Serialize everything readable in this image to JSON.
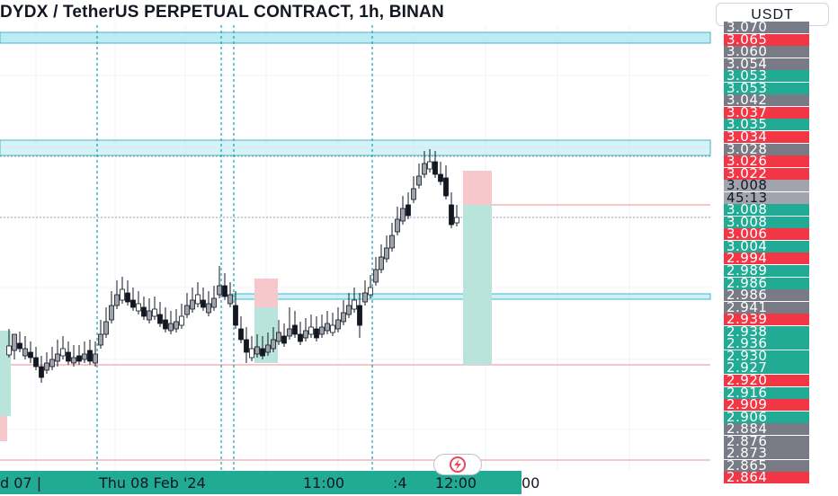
{
  "header": {
    "title": "DYDX / TetherUS PERPETUAL CONTRACT, 1h, BINAN",
    "currency_button": "USDT"
  },
  "colors": {
    "up": "#22ab94",
    "down": "#f23645",
    "neutral": "#787b86",
    "wick": "#131722",
    "zone": "#aee6f0",
    "zone_border": "#41b6c9",
    "stop_zone": "#f7c8cb",
    "target_zone": "#b9e4dc"
  },
  "price_axis": [
    {
      "text": "3.070",
      "color": "#787b86"
    },
    {
      "text": "3.065",
      "color": "#f23645"
    },
    {
      "text": "3.060",
      "color": "#787b86"
    },
    {
      "text": "3.054",
      "color": "#787b86"
    },
    {
      "text": "3.053",
      "color": "#22ab94"
    },
    {
      "text": "3.053",
      "color": "#22ab94"
    },
    {
      "text": "3.042",
      "color": "#787b86"
    },
    {
      "text": "3.037",
      "color": "#f23645"
    },
    {
      "text": "3.035",
      "color": "#22ab94"
    },
    {
      "text": "3.034",
      "color": "#f23645"
    },
    {
      "text": "3.028",
      "color": "#787b86"
    },
    {
      "text": "3.026",
      "color": "#f23645"
    },
    {
      "text": "3.022",
      "color": "#f23645"
    },
    {
      "text": "3.008",
      "color": "#a1a4ac",
      "dark": true
    },
    {
      "text": "45:13",
      "color": "#a1a4ac",
      "dark": true
    },
    {
      "text": "3.008",
      "color": "#22ab94"
    },
    {
      "text": "3.008",
      "color": "#22ab94"
    },
    {
      "text": "3.006",
      "color": "#f23645"
    },
    {
      "text": "3.004",
      "color": "#22ab94"
    },
    {
      "text": "2.994",
      "color": "#f23645"
    },
    {
      "text": "2.989",
      "color": "#22ab94"
    },
    {
      "text": "2.986",
      "color": "#22ab94"
    },
    {
      "text": "2.986",
      "color": "#787b86"
    },
    {
      "text": "2.941",
      "color": "#787b86"
    },
    {
      "text": "2.939",
      "color": "#f23645"
    },
    {
      "text": "2.938",
      "color": "#22ab94"
    },
    {
      "text": "2.936",
      "color": "#22ab94"
    },
    {
      "text": "2.930",
      "color": "#22ab94"
    },
    {
      "text": "2.927",
      "color": "#22ab94"
    },
    {
      "text": "2.920",
      "color": "#f23645"
    },
    {
      "text": "2.916",
      "color": "#22ab94"
    },
    {
      "text": "2.909",
      "color": "#f23645"
    },
    {
      "text": "2.906",
      "color": "#22ab94"
    },
    {
      "text": "2.884",
      "color": "#787b86"
    },
    {
      "text": "2.876",
      "color": "#787b86"
    },
    {
      "text": "2.873",
      "color": "#787b86"
    },
    {
      "text": "2.865",
      "color": "#787b86"
    },
    {
      "text": "2.864",
      "color": "#f23645"
    }
  ],
  "time_axis": [
    {
      "text": "d 07 |"
    },
    {
      "text": "Thu 08 Feb '24"
    },
    {
      "text": "11:00"
    },
    {
      "text": ":4"
    },
    {
      "text": "12:00"
    },
    {
      "text": "00"
    }
  ]
}
